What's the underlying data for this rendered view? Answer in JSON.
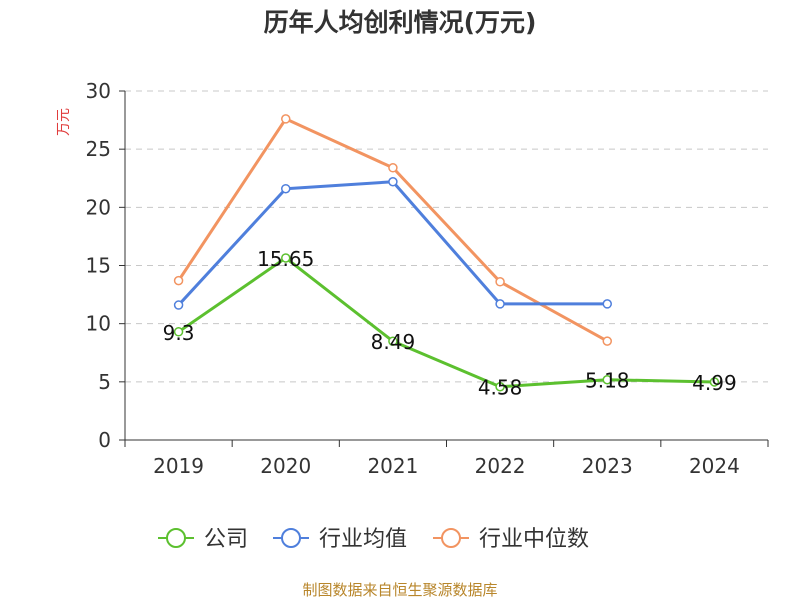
{
  "chart_data": {
    "type": "line",
    "title": "历年人均创利情况(万元)",
    "ylabel": "万元",
    "xlabel": "",
    "categories": [
      "2019",
      "2020",
      "2021",
      "2022",
      "2023",
      "2024"
    ],
    "ylim": [
      0,
      30
    ],
    "y_ticks": [
      "0",
      "5",
      "10",
      "15",
      "20",
      "25",
      "30"
    ],
    "grid": true,
    "legend_position": "bottom",
    "series": [
      {
        "name": "公司",
        "color": "#5cc02f",
        "values": [
          9.3,
          15.65,
          8.49,
          4.58,
          5.18,
          4.99
        ],
        "labels": [
          "9.3",
          "15.65",
          "8.49",
          "4.58",
          "5.18",
          "4.99"
        ]
      },
      {
        "name": "行业均值",
        "color": "#4f7fdc",
        "values": [
          11.6,
          21.6,
          22.2,
          11.7,
          11.7,
          null
        ],
        "labels": []
      },
      {
        "name": "行业中位数",
        "color": "#f29461",
        "values": [
          13.7,
          27.6,
          23.4,
          13.6,
          8.5,
          null
        ],
        "labels": []
      }
    ],
    "footer": "制图数据来自恒生聚源数据库"
  },
  "colors": {
    "axis": "#333333",
    "grid": "#c8c8c8",
    "ylabel": "#e03c3c",
    "footer": "#b8862b"
  }
}
